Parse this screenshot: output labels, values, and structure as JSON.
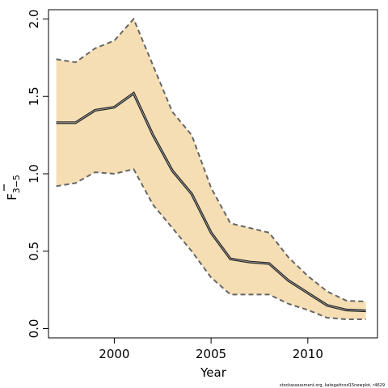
{
  "chart_data": {
    "type": "line",
    "xlabel": "Year",
    "ylabel": "F",
    "ylabel_subscript": "3−5",
    "xlim": [
      1996.6,
      2013.6
    ],
    "ylim": [
      -0.06,
      2.06
    ],
    "xticks": [
      2000,
      2005,
      2010
    ],
    "yticks": [
      "0.0",
      "0.5",
      "1.0",
      "1.5",
      "2.0"
    ],
    "band_color": "#f5deb3",
    "line_color": "#222222",
    "bound_color": "#666666",
    "series": [
      {
        "x": [
          1997,
          1998,
          1999,
          2000,
          2001,
          2002,
          2003,
          2004,
          2005,
          2006,
          2007,
          2008,
          2009,
          2010,
          2011,
          2012,
          2013
        ],
        "estimate": [
          1.33,
          1.33,
          1.41,
          1.43,
          1.52,
          1.25,
          1.02,
          0.87,
          0.62,
          0.45,
          0.43,
          0.42,
          0.31,
          0.23,
          0.15,
          0.12,
          0.115
        ],
        "lower": [
          0.92,
          0.94,
          1.01,
          1.0,
          1.03,
          0.8,
          0.65,
          0.5,
          0.33,
          0.22,
          0.22,
          0.22,
          0.16,
          0.12,
          0.07,
          0.06,
          0.06
        ],
        "upper": [
          1.74,
          1.72,
          1.81,
          1.86,
          2.0,
          1.7,
          1.4,
          1.25,
          0.91,
          0.68,
          0.65,
          0.62,
          0.46,
          0.34,
          0.24,
          0.18,
          0.175
        ]
      }
    ]
  },
  "credit": "stockassessment.org, kategattcod15newplot, r4629"
}
